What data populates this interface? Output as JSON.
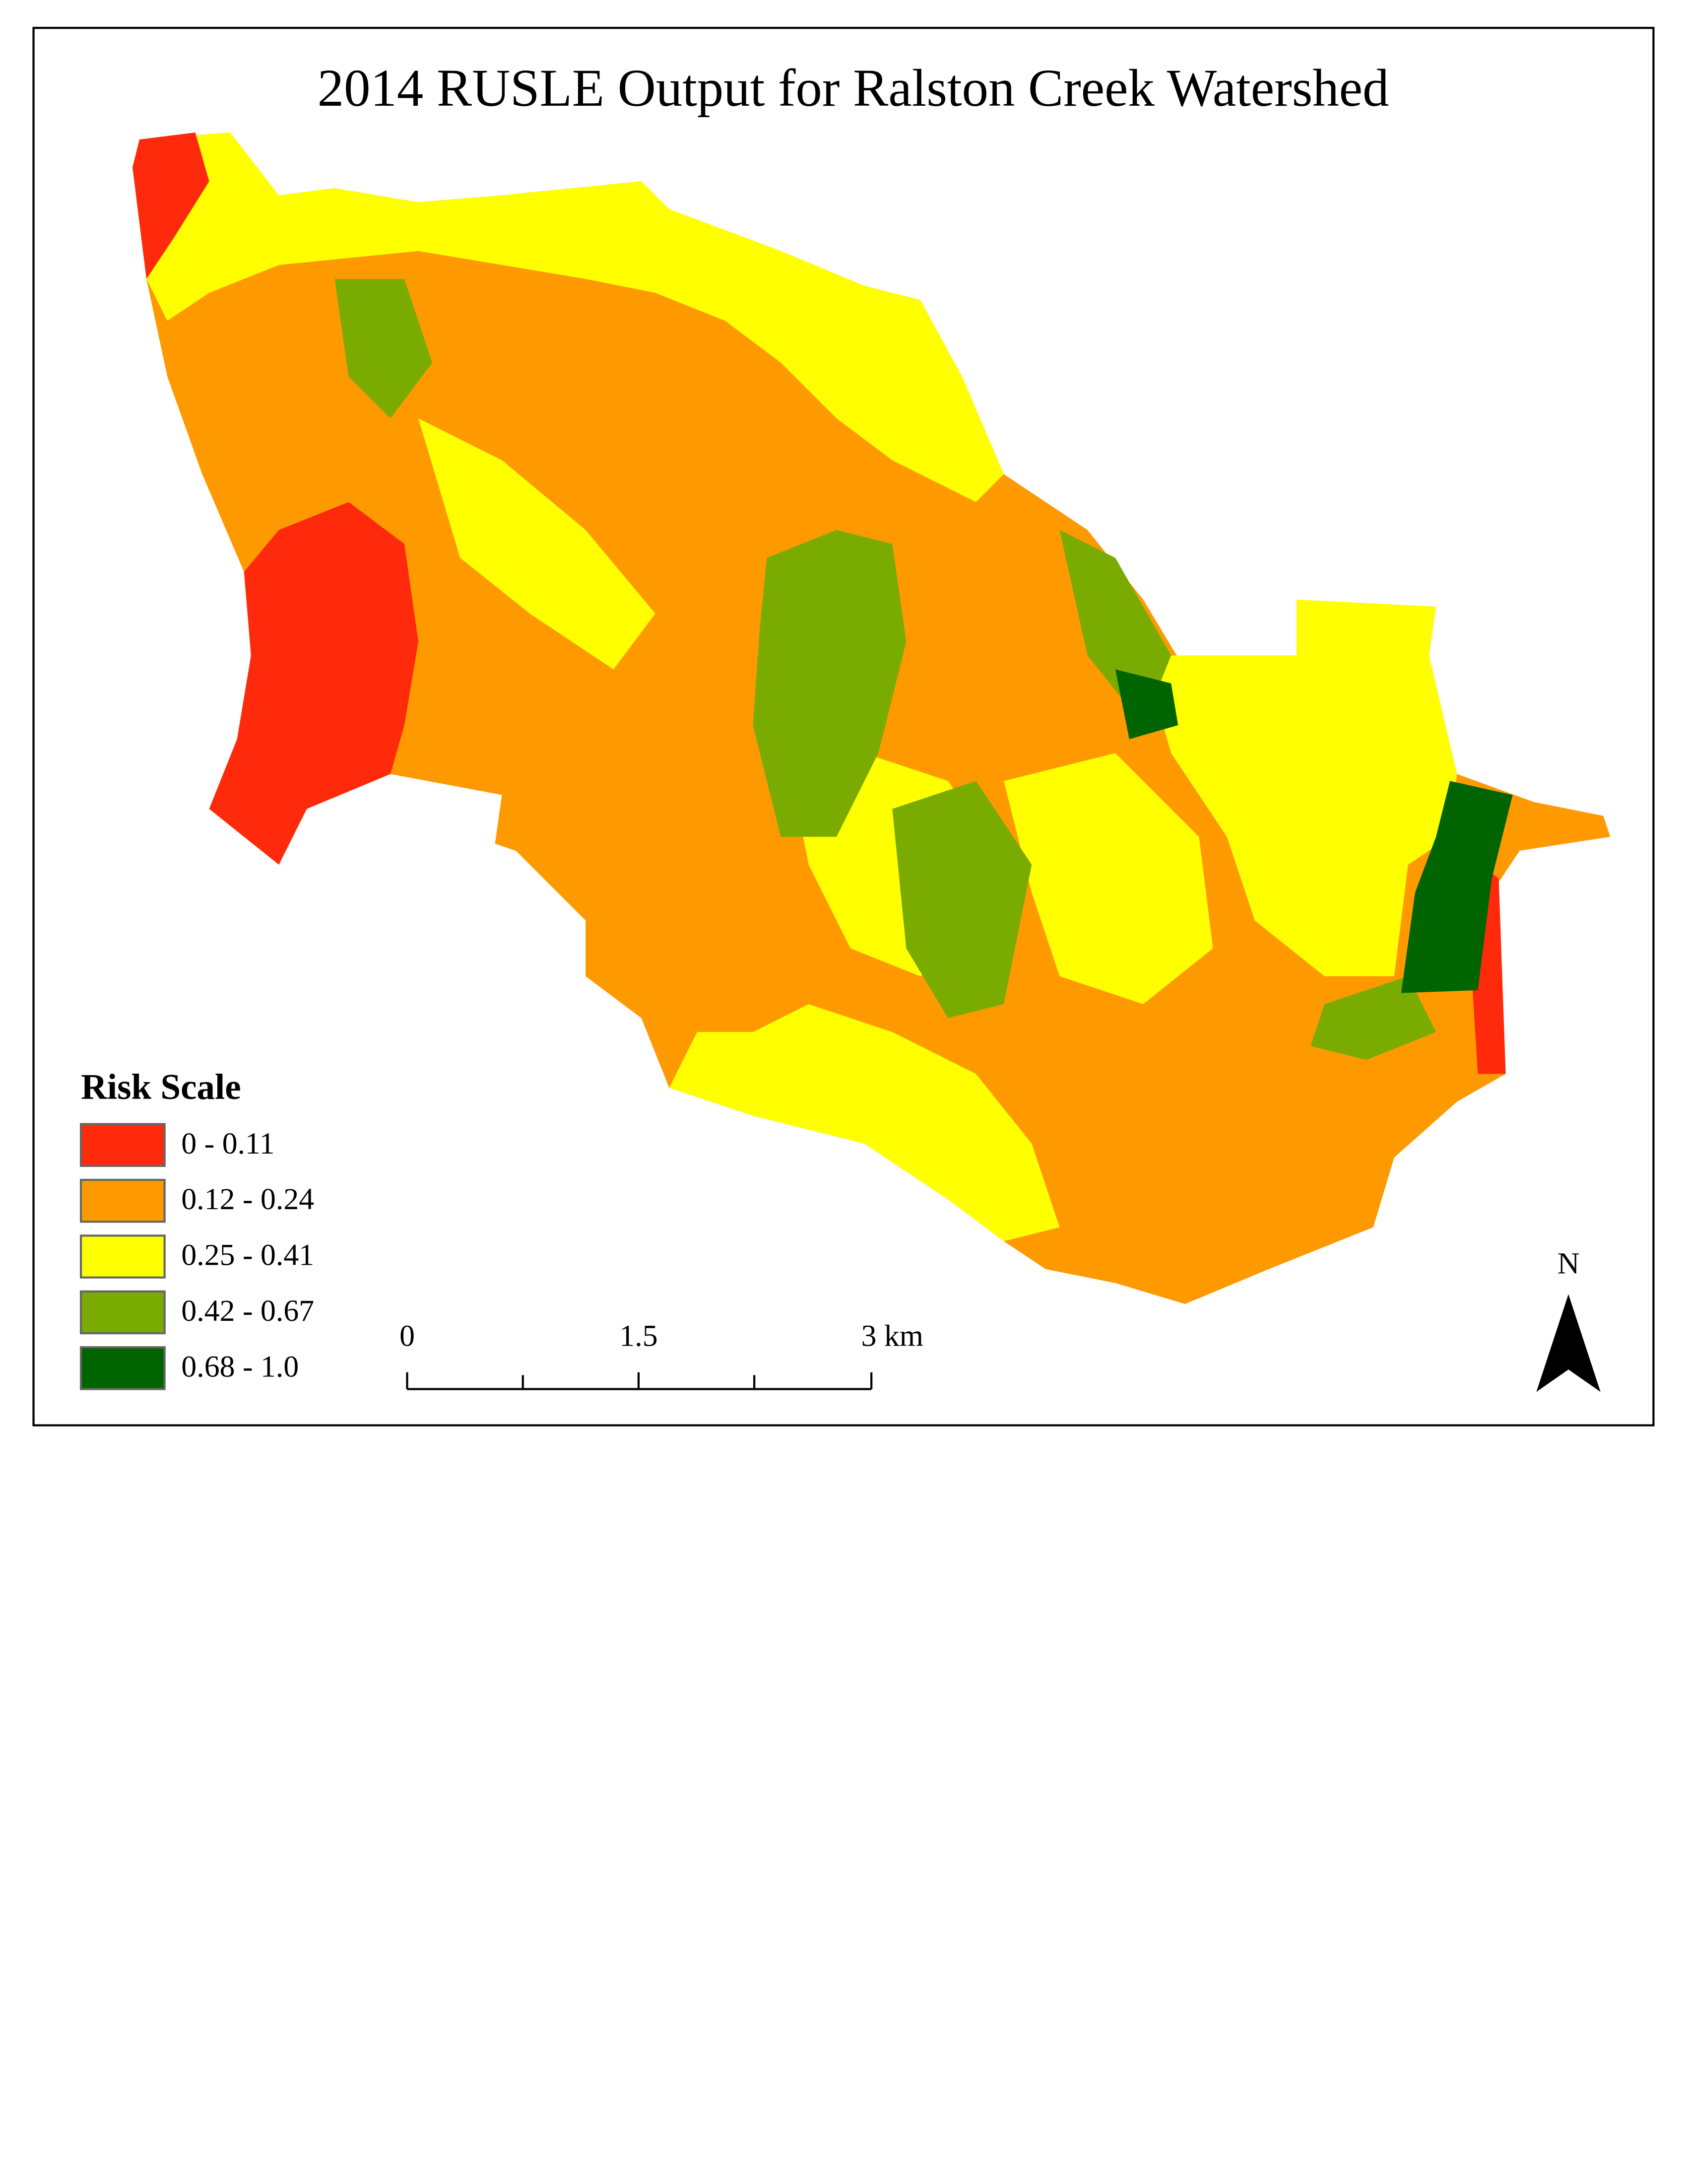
{
  "title": "2014 RUSLE Output for Ralston Creek Watershed",
  "legend": {
    "title": "Risk Scale",
    "items": [
      {
        "label": "0 - 0.11",
        "color": "#ff2a0c"
      },
      {
        "label": "0.12 - 0.24",
        "color": "#ff9900"
      },
      {
        "label": "0.25 - 0.41",
        "color": "#ffff00"
      },
      {
        "label": "0.42 - 0.67",
        "color": "#7aab00"
      },
      {
        "label": "0.68 - 1.0",
        "color": "#006400"
      }
    ]
  },
  "scale_bar": {
    "labels": [
      "0",
      "1.5",
      "3 km"
    ]
  },
  "north_arrow": {
    "label": "N"
  }
}
